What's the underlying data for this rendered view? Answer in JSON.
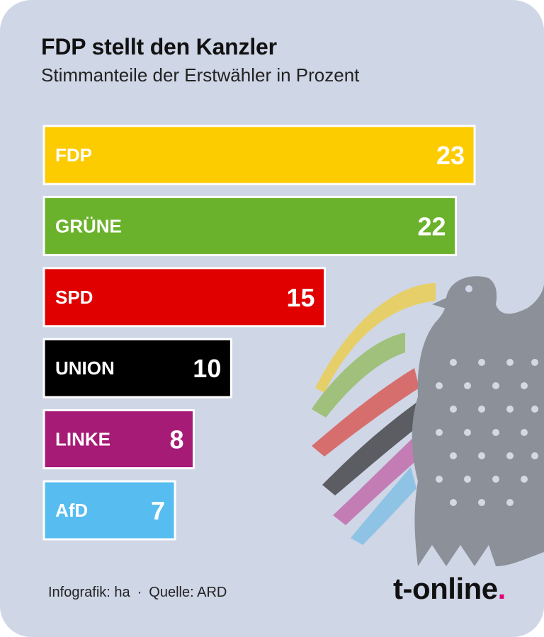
{
  "title": "FDP stellt den Kanzler",
  "subtitle": "Stimmanteile der Erstwähler in Prozent",
  "chart_data": {
    "type": "bar",
    "orientation": "horizontal",
    "categories": [
      "FDP",
      "GRÜNE",
      "SPD",
      "UNION",
      "LINKE",
      "AfD"
    ],
    "values": [
      23,
      22,
      15,
      10,
      8,
      7
    ],
    "colors": [
      "#fccb00",
      "#6ab22b",
      "#e10000",
      "#000000",
      "#a61b76",
      "#57bcf0"
    ],
    "label_text_color": "#ffffff",
    "title": "FDP stellt den Kanzler",
    "subtitle": "Stimmanteile der Erstwähler in Prozent",
    "grid": false,
    "legend": "none"
  },
  "footer": {
    "credit": "Infografik: ha",
    "separator": "·",
    "source": "Quelle: ARD"
  },
  "brand": {
    "name": "t-online",
    "dot": ".",
    "dot_color": "#e20074"
  },
  "decoration": {
    "icon": "federal-eagle-icon",
    "eagle_color": "#8c9099"
  }
}
